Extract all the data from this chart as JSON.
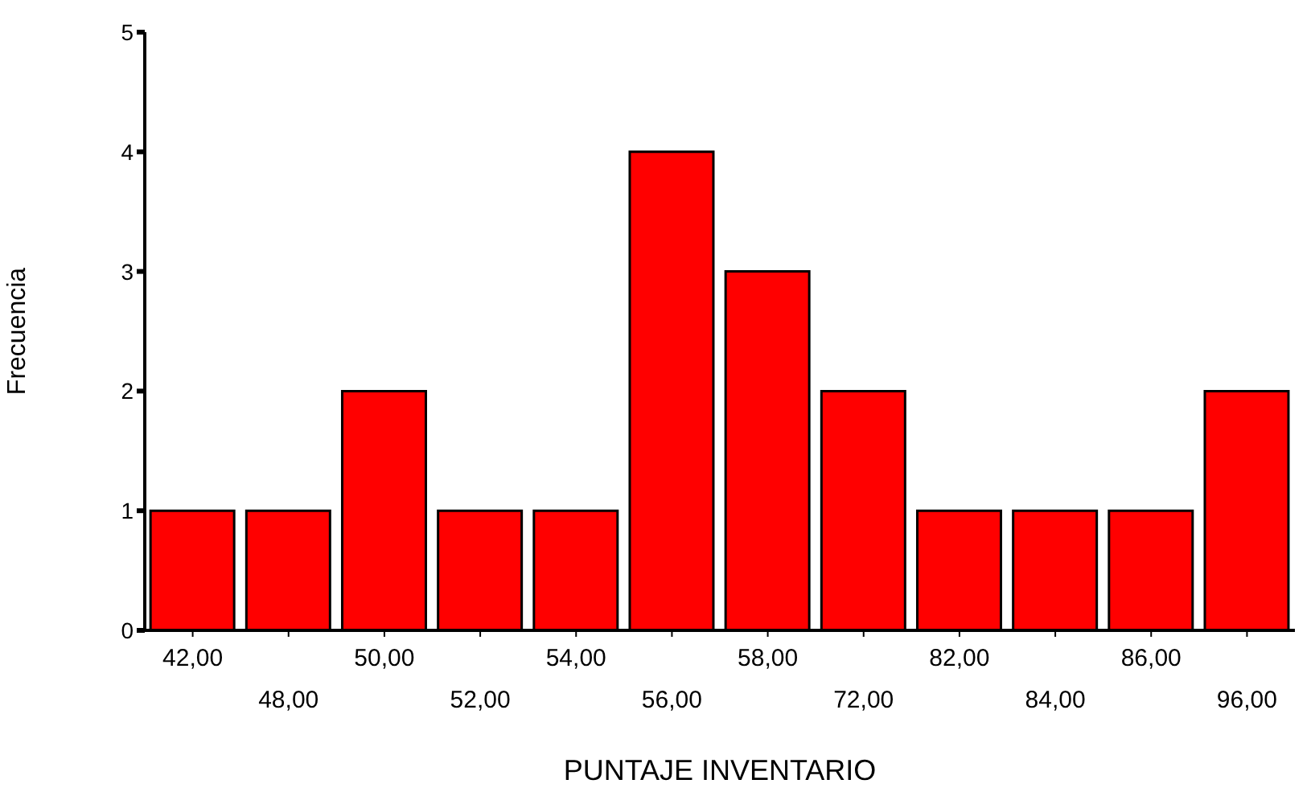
{
  "chart_data": {
    "type": "bar",
    "xlabel": "PUNTAJE INVENTARIO",
    "ylabel": "Frecuencia",
    "categories": [
      "42,00",
      "48,00",
      "50,00",
      "52,00",
      "54,00",
      "56,00",
      "58,00",
      "72,00",
      "82,00",
      "84,00",
      "86,00",
      "96,00"
    ],
    "values": [
      1,
      1,
      2,
      1,
      1,
      4,
      3,
      2,
      1,
      1,
      1,
      2
    ],
    "color": "#ff0000",
    "ylim": [
      0,
      5
    ],
    "yticks": [
      0,
      1,
      2,
      3,
      4,
      5
    ]
  }
}
